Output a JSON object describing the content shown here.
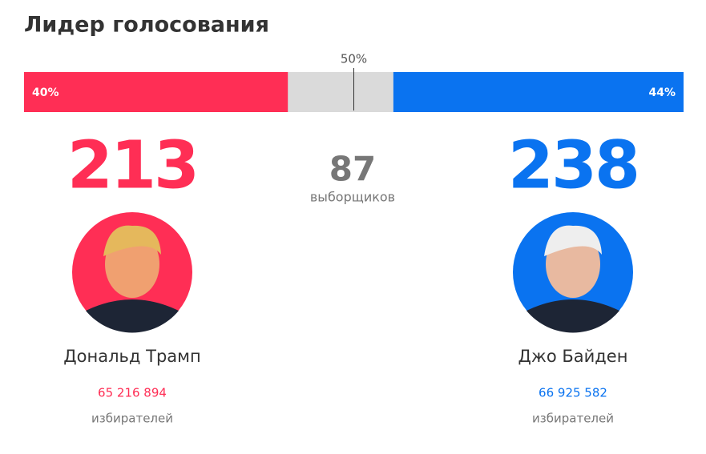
{
  "title": "Лидер голосования",
  "bar": {
    "midpoint": {
      "value": 50,
      "label": "50%"
    },
    "left": {
      "value": 40,
      "label": "40%",
      "color": "#ff2e55"
    },
    "right": {
      "value": 44,
      "label": "44%",
      "color": "#0a73f0"
    }
  },
  "center": {
    "electors": 87,
    "caption": "выборщиков"
  },
  "candidates": [
    {
      "name": "Дональд Трамп",
      "electors": 213,
      "votes": "65 216 894",
      "votes_caption": "избирателей",
      "color": "#ff2e55"
    },
    {
      "name": "Джо Байден",
      "electors": 238,
      "votes": "66 925 582",
      "votes_caption": "избирателей",
      "color": "#0a73f0"
    }
  ]
}
